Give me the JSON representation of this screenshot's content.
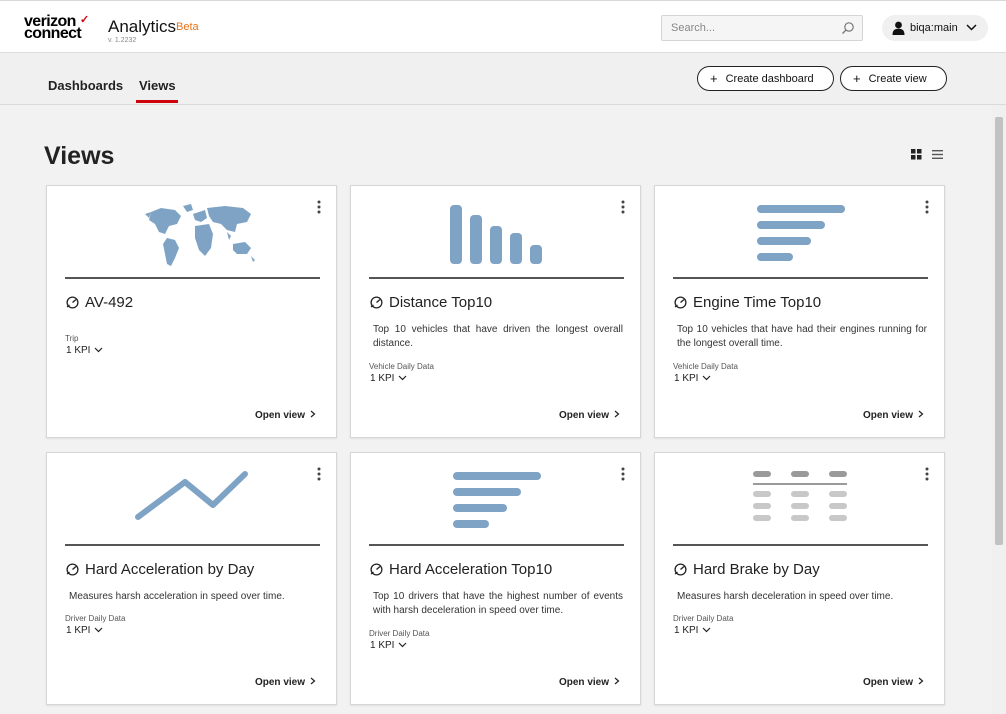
{
  "brand": {
    "logo_line1": "verizon",
    "logo_line2": "connect",
    "logo_mark": "✓"
  },
  "app": {
    "title": "Analytics",
    "beta": "Beta",
    "version": "v. 1.2232"
  },
  "search": {
    "placeholder": "Search...",
    "value": "",
    "icon": "search-icon"
  },
  "user": {
    "name": "biqa:main",
    "icon": "person-icon"
  },
  "tabs": [
    {
      "label": "Dashboards",
      "active": false
    },
    {
      "label": "Views",
      "active": true
    }
  ],
  "actions": {
    "create_dashboard": "Create dashboard",
    "create_view": "Create view",
    "plus": "+"
  },
  "page": {
    "title": "Views"
  },
  "colors": {
    "accent": "#cd040b",
    "beta": "#e8751a",
    "illustration": "#7fa3c4",
    "table_header": "#9a9a9a",
    "table_cell": "#c8c8c8"
  },
  "cards": [
    {
      "title": "AV-492",
      "description": "",
      "source": "Trip",
      "kpi": "1 KPI",
      "open": "Open view",
      "illustration": "world-map"
    },
    {
      "title": "Distance Top10",
      "description": "Top 10 vehicles that have driven the longest overall distance.",
      "source": "Vehicle Daily Data",
      "kpi": "1 KPI",
      "open": "Open view",
      "illustration": "bar-chart"
    },
    {
      "title": "Engine Time Top10",
      "description": "Top 10 vehicles that have had their engines running for the longest overall time.",
      "source": "Vehicle Daily Data",
      "kpi": "1 KPI",
      "open": "Open view",
      "illustration": "horizontal-bars"
    },
    {
      "title": "Hard Acceleration by Day",
      "description": "Measures harsh acceleration in speed over time.",
      "source": "Driver Daily Data",
      "kpi": "1 KPI",
      "open": "Open view",
      "illustration": "line-chart"
    },
    {
      "title": "Hard Acceleration Top10",
      "description": "Top 10 drivers that have the highest number of events with harsh deceleration in speed over time.",
      "source": "Driver Daily Data",
      "kpi": "1 KPI",
      "open": "Open view",
      "illustration": "horizontal-bars"
    },
    {
      "title": "Hard Brake by Day",
      "description": "Measures harsh deceleration in speed over time.",
      "source": "Driver Daily Data",
      "kpi": "1 KPI",
      "open": "Open view",
      "illustration": "table"
    }
  ]
}
